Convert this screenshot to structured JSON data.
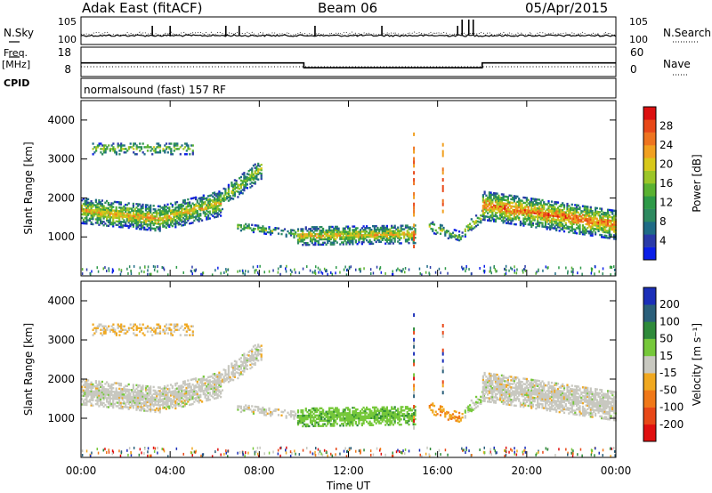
{
  "header": {
    "station": "Adak East (fitACF)",
    "beam": "Beam 06",
    "date": "05/Apr/2015"
  },
  "left_labels": {
    "nsky": "N.Sky",
    "freq": "Freq.",
    "mhz": "[MHz]",
    "cpid": "CPID"
  },
  "right_labels": {
    "nsearch": "N.Search",
    "nave": "Nave"
  },
  "cpid_text": "normalsound (fast) 157 RF",
  "chart_data": [
    {
      "type": "line",
      "name_panel": "noise",
      "ylim_left_labels": [
        "10^5",
        "10^0"
      ],
      "ylim_right_labels": [
        "10^5",
        "10^0"
      ],
      "series": [
        {
          "name": "N.Sky",
          "style": "solid"
        },
        {
          "name": "N.Search",
          "style": "dotted"
        }
      ]
    },
    {
      "type": "line",
      "name_panel": "frequency",
      "left_ticks": [
        "18",
        "8"
      ],
      "right_ticks": [
        "60",
        "0"
      ],
      "x": [
        "00:00",
        "10:00",
        "10:00",
        "18:00",
        "18:00",
        "24:00"
      ],
      "series": [
        {
          "name": "Freq.",
          "style": "solid",
          "values": [
            12.5,
            12.5,
            10.2,
            10.2,
            12.5,
            12.5
          ]
        },
        {
          "name": "Nave",
          "style": "dotted",
          "values": [
            9,
            9,
            9,
            9,
            9,
            9
          ]
        }
      ]
    },
    {
      "type": "heatmap",
      "name_panel": "power",
      "ylabel": "Slant Range [km]",
      "yticks": [
        "1000",
        "2000",
        "3000",
        "4000"
      ],
      "ylim": [
        0,
        4500
      ],
      "colorbar_label": "Power [dB]",
      "colorbar_ticks": [
        "28",
        "24",
        "20",
        "16",
        "12",
        "8",
        "4"
      ],
      "colorbar_range": [
        0,
        32
      ],
      "colorbar_colors": [
        "#0a1ee8",
        "#2a3aa8",
        "#1f6b86",
        "#2e8a60",
        "#2e9a48",
        "#5ab232",
        "#9cc628",
        "#d8c81a",
        "#f1a020",
        "#ee7420",
        "#e84818",
        "#dc1010"
      ]
    },
    {
      "type": "heatmap",
      "name_panel": "velocity",
      "ylabel": "Slant Range [km]",
      "yticks": [
        "1000",
        "2000",
        "3000",
        "4000"
      ],
      "ylim": [
        0,
        4500
      ],
      "colorbar_label": "Velocity [m s⁻¹]",
      "colorbar_ticks": [
        "200",
        "100",
        "50",
        "15",
        "-15",
        "-50",
        "-100",
        "-200"
      ],
      "colorbar_colors": [
        "#1b2fb8",
        "#2a5f7a",
        "#2e8a3a",
        "#76c83a",
        "#c8c8c0",
        "#f0a820",
        "#f07818",
        "#e84818",
        "#e01010"
      ]
    }
  ],
  "xaxis": {
    "ticks": [
      "00:00",
      "04:00",
      "08:00",
      "12:00",
      "16:00",
      "20:00",
      "00:00"
    ],
    "label": "Time UT"
  },
  "colors": {
    "frame": "#000000",
    "background": "#ffffff"
  }
}
